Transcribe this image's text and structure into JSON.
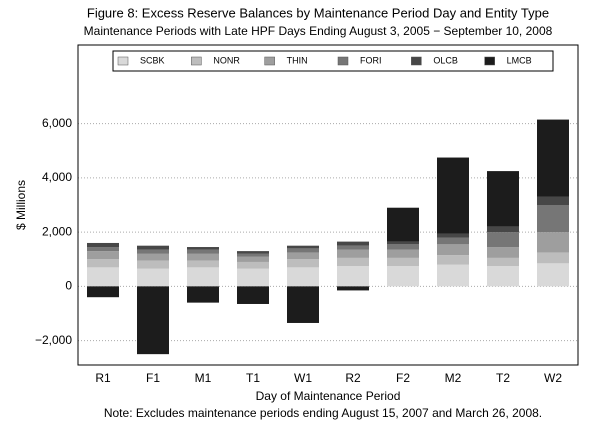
{
  "chart_data": {
    "type": "stacked_bar",
    "title": "Figure 8: Excess Reserve Balances by Maintenance Period Day and Entity Type",
    "subtitle": "Maintenance Periods with Late HPF Days Ending August 3, 2005 − September 10, 2008",
    "y_label": "$ Millions",
    "x_label": "Day of Maintenance Period",
    "note": "Note: Excludes maintenance periods ending August 15, 2007 and March 26, 2008.",
    "categories": [
      "R1",
      "F1",
      "M1",
      "T1",
      "W1",
      "R2",
      "F2",
      "M2",
      "T2",
      "W2"
    ],
    "series": [
      {
        "name": "SCBK",
        "color": "#d9d9d9",
        "values": [
          700,
          650,
          700,
          650,
          700,
          750,
          750,
          800,
          750,
          850
        ]
      },
      {
        "name": "NONR",
        "color": "#bdbdbd",
        "values": [
          300,
          300,
          250,
          250,
          300,
          300,
          300,
          350,
          300,
          400
        ]
      },
      {
        "name": "THIN",
        "color": "#9e9e9e",
        "values": [
          300,
          250,
          250,
          200,
          250,
          300,
          300,
          400,
          400,
          750
        ]
      },
      {
        "name": "FORI",
        "color": "#767676",
        "values": [
          150,
          150,
          150,
          100,
          150,
          150,
          200,
          250,
          550,
          1000
        ]
      },
      {
        "name": "OLCB",
        "color": "#474747",
        "values": [
          150,
          150,
          100,
          100,
          100,
          150,
          100,
          150,
          200,
          300
        ]
      },
      {
        "name": "LMCB",
        "color": "#1c1c1c",
        "values": [
          -400,
          -2500,
          -600,
          -650,
          -1350,
          -150,
          1250,
          2800,
          2050,
          2850
        ]
      }
    ],
    "ylim": [
      -2900,
      8900
    ],
    "yticks": [
      {
        "value": -2000,
        "label": "−2,000"
      },
      0,
      {
        "value": 2000,
        "label": "2,000"
      },
      {
        "value": 4000,
        "label": "4,000"
      },
      {
        "value": 6000,
        "label": "6,000"
      }
    ],
    "grid": true
  }
}
